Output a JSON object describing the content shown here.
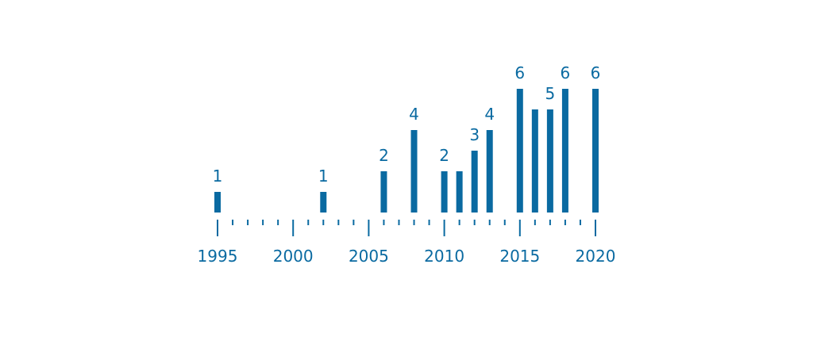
{
  "colors": {
    "bar": "#0a6aa1",
    "text": "#0a6aa1",
    "tick": "#0a6aa1",
    "background": "#ffffff"
  },
  "chart_data": {
    "type": "bar",
    "x": [
      1995,
      2002,
      2006,
      2008,
      2010,
      2011,
      2012,
      2013,
      2015,
      2016,
      2017,
      2018,
      2020
    ],
    "values": [
      1,
      1,
      2,
      4,
      2,
      2,
      3,
      4,
      6,
      5,
      5,
      6,
      6
    ],
    "data_labels": [
      "1",
      "1",
      "2",
      "4",
      "2",
      "",
      "3",
      "4",
      "6",
      "",
      "5",
      "6",
      "6"
    ],
    "xlim": [
      1995,
      2020
    ],
    "ylim": [
      0,
      6
    ],
    "x_ticks_major": [
      1995,
      2000,
      2005,
      2010,
      2015,
      2020
    ],
    "x_tick_labels": [
      "1995",
      "2000",
      "2005",
      "2010",
      "2015",
      "2020"
    ],
    "minor_ticks_every": 1,
    "title": "",
    "xlabel": "",
    "ylabel": "",
    "grid": false
  }
}
